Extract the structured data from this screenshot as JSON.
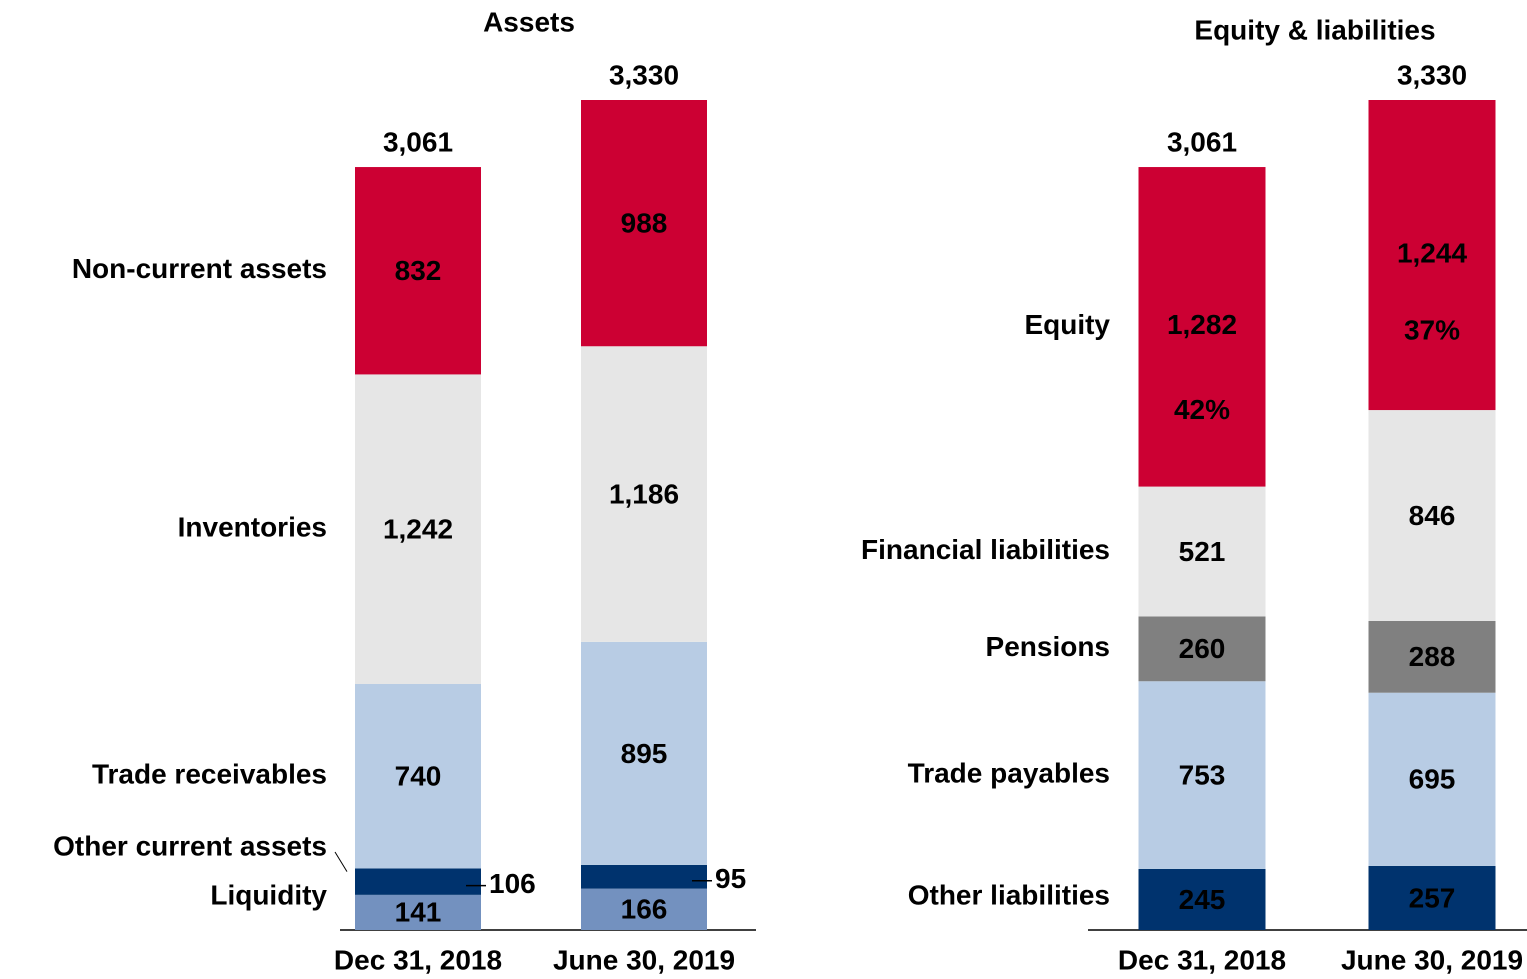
{
  "chart_data": [
    {
      "type": "stacked-bar",
      "title": "Assets",
      "categories": [
        "Dec 31, 2018",
        "June 30, 2019"
      ],
      "totals": [
        3061,
        3330
      ],
      "total_labels": [
        "3,061",
        "3,330"
      ],
      "series": [
        {
          "name": "Liquidity",
          "color": "#7391bf",
          "values": [
            141,
            166
          ]
        },
        {
          "name": "Other current assets",
          "color": "#00336e",
          "values": [
            106,
            95
          ]
        },
        {
          "name": "Trade receivables",
          "color": "#b8cce4",
          "values": [
            740,
            895
          ]
        },
        {
          "name": "Inventories",
          "color": "#e6e6e6",
          "values": [
            1242,
            1186
          ],
          "value_labels": [
            "1,242",
            "1,186"
          ]
        },
        {
          "name": "Non-current assets",
          "color": "#cc0033",
          "values": [
            832,
            988
          ]
        }
      ]
    },
    {
      "type": "stacked-bar",
      "title": "Equity & liabilities",
      "categories": [
        "Dec 31, 2018",
        "June 30, 2019"
      ],
      "totals": [
        3061,
        3330
      ],
      "total_labels": [
        "3,061",
        "3,330"
      ],
      "series": [
        {
          "name": "Other liabilities",
          "color": "#00336e",
          "values": [
            245,
            257
          ]
        },
        {
          "name": "Trade payables",
          "color": "#b8cce4",
          "values": [
            753,
            695
          ]
        },
        {
          "name": "Pensions",
          "color": "#808080",
          "values": [
            260,
            288
          ]
        },
        {
          "name": "Financial liabilities",
          "color": "#e6e6e6",
          "values": [
            521,
            846
          ]
        },
        {
          "name": "Equity",
          "color": "#cc0033",
          "values": [
            1282,
            1244
          ],
          "value_labels": [
            "1,282",
            "1,244"
          ],
          "annotations": [
            "42%",
            "37%"
          ]
        }
      ]
    }
  ]
}
